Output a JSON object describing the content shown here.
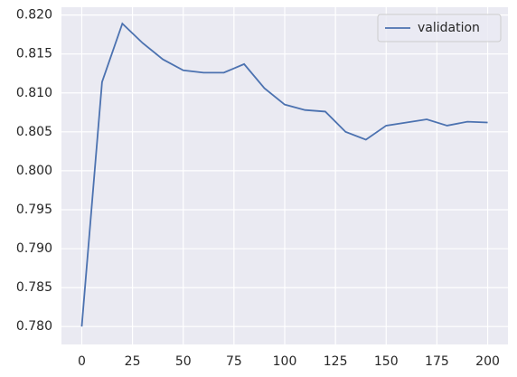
{
  "chart_data": {
    "type": "line",
    "x": [
      0,
      10,
      20,
      30,
      40,
      50,
      60,
      70,
      80,
      90,
      100,
      110,
      120,
      130,
      140,
      150,
      160,
      170,
      180,
      190,
      200
    ],
    "series": [
      {
        "name": "validation",
        "color": "#4c72b0",
        "values": [
          0.78,
          0.8114,
          0.8189,
          0.8164,
          0.8143,
          0.8129,
          0.8126,
          0.8126,
          0.8137,
          0.8106,
          0.8085,
          0.8078,
          0.8076,
          0.805,
          0.804,
          0.8058,
          0.8062,
          0.8066,
          0.8058,
          0.8063,
          0.8062
        ]
      }
    ],
    "xlim": [
      -10,
      210
    ],
    "xticks": [
      0,
      25,
      50,
      75,
      100,
      125,
      150,
      175,
      200
    ],
    "ylim": [
      0.7777,
      0.821
    ],
    "yticks": [
      {
        "value": 0.78,
        "label": "0.780"
      },
      {
        "value": 0.785,
        "label": "0.785"
      },
      {
        "value": 0.79,
        "label": "0.790"
      },
      {
        "value": 0.795,
        "label": "0.795"
      },
      {
        "value": 0.8,
        "label": "0.800"
      },
      {
        "value": 0.805,
        "label": "0.805"
      },
      {
        "value": 0.81,
        "label": "0.810"
      },
      {
        "value": 0.815,
        "label": "0.815"
      },
      {
        "value": 0.82,
        "label": "0.820"
      }
    ],
    "grid": true,
    "legend": "upper right"
  }
}
